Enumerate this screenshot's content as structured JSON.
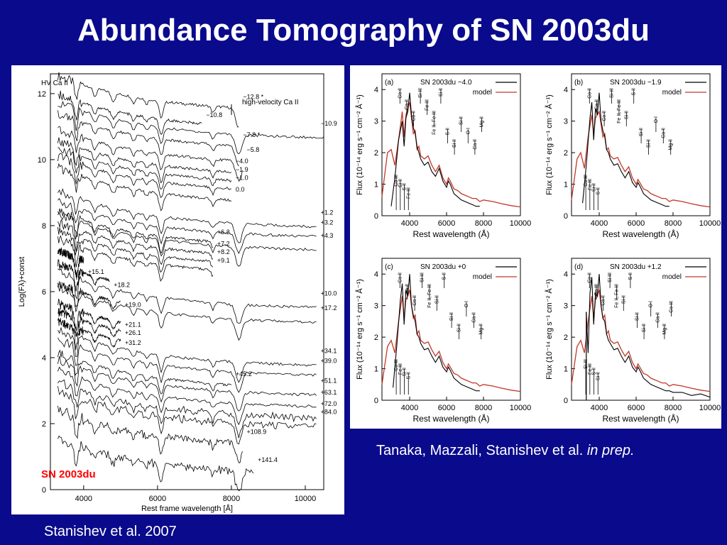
{
  "slide": {
    "title": "Abundance Tomography of SN 2003du",
    "caption_right_main": "Tanaka, Mazzali, Stanishev et al.",
    "caption_right_italic": "in prep.",
    "caption_left": "Stanishev et al. 2007"
  },
  "colors": {
    "background": "#0a0a8c",
    "model": "#c0392b",
    "observed": "#000000",
    "red_label": "#ff0000"
  },
  "chart_data": [
    {
      "type": "line",
      "title": "",
      "xlabel": "Rest frame wavelength [Å]",
      "ylabel": "Log(Fλ)+const",
      "xlim": [
        3100,
        10500
      ],
      "ylim": [
        0,
        12.6
      ],
      "xticks": [
        "4000",
        "6000",
        "8000",
        "10000"
      ],
      "yticks": [
        "0",
        "2",
        "4",
        "6",
        "8",
        "10",
        "12"
      ],
      "sn_label": "SN 2003du",
      "annotations": [
        "HV Ca II",
        "high-velocity Ca II"
      ],
      "series": [
        {
          "name": "−12.8 *",
          "offset": 11.9,
          "xmax": 8200
        },
        {
          "name": "−10.8",
          "offset": 11.35,
          "xmax": 7200
        },
        {
          "name": "−10.9",
          "offset": 11.1,
          "xmax": 10500
        },
        {
          "name": "−7.8 *",
          "offset": 10.75,
          "xmax": 8200
        },
        {
          "name": "−5.8",
          "offset": 10.3,
          "xmax": 8300
        },
        {
          "name": "−4.0",
          "offset": 9.95,
          "xmax": 8000
        },
        {
          "name": "−1.9",
          "offset": 9.7,
          "xmax": 8000
        },
        {
          "name": "−1.0",
          "offset": 9.45,
          "xmax": 8000
        },
        {
          "name": "0.0",
          "offset": 9.1,
          "xmax": 8000
        },
        {
          "name": "+1.2",
          "offset": 8.4,
          "xmax": 10300
        },
        {
          "name": "+3.2",
          "offset": 8.1,
          "xmax": 10300
        },
        {
          "name": "+6.2",
          "offset": 7.8,
          "xmax": 7500
        },
        {
          "name": "+4.3",
          "offset": 7.7,
          "xmax": 10300
        },
        {
          "name": "+7.2",
          "offset": 7.45,
          "xmax": 7500
        },
        {
          "name": "+8.2",
          "offset": 7.2,
          "xmax": 7500
        },
        {
          "name": "+9.1",
          "offset": 6.95,
          "xmax": 7500
        },
        {
          "name": "+15.1",
          "offset": 6.6,
          "xmax": 4000
        },
        {
          "name": "+18.2",
          "offset": 6.2,
          "xmax": 4700
        },
        {
          "name": "+10.0",
          "offset": 5.95,
          "xmax": 10300
        },
        {
          "name": "+19.0",
          "offset": 5.6,
          "xmax": 5000
        },
        {
          "name": "+17.2",
          "offset": 5.5,
          "xmax": 10300
        },
        {
          "name": "+21.1",
          "offset": 5.0,
          "xmax": 5000
        },
        {
          "name": "+26.1",
          "offset": 4.75,
          "xmax": 5000
        },
        {
          "name": "+31.2",
          "offset": 4.45,
          "xmax": 5000
        },
        {
          "name": "+34.1",
          "offset": 4.2,
          "xmax": 10300
        },
        {
          "name": "+39.0",
          "offset": 3.9,
          "xmax": 10300
        },
        {
          "name": "+45.2",
          "offset": 3.5,
          "xmax": 8000
        },
        {
          "name": "+51.1",
          "offset": 3.3,
          "xmax": 10300
        },
        {
          "name": "+63.1",
          "offset": 2.95,
          "xmax": 10300
        },
        {
          "name": "+72.0",
          "offset": 2.6,
          "xmax": 10300
        },
        {
          "name": "+84.0",
          "offset": 2.35,
          "xmax": 10300
        },
        {
          "name": "+108.9",
          "offset": 1.75,
          "xmax": 8300
        },
        {
          "name": "+141.4",
          "offset": 0.9,
          "xmax": 8600
        }
      ]
    },
    {
      "panel": "(a)",
      "type": "line",
      "legend_title": "SN 2003du −4.0",
      "legend_model": "model",
      "xlabel": "Rest wavelength (Å)",
      "ylabel": "Flux (10⁻¹⁴ erg s⁻¹ cm⁻² Å⁻¹)",
      "xlim": [
        2500,
        10000
      ],
      "ylim": [
        0,
        4.5
      ],
      "xticks": [
        "4000",
        "6000",
        "8000",
        "10000"
      ],
      "yticks": [
        "0",
        "1",
        "2",
        "3",
        "4"
      ],
      "series": [
        {
          "name": "SN 2003du",
          "x": [
            3000,
            3200,
            3400,
            3600,
            3700,
            3800,
            3900,
            4000,
            4100,
            4200,
            4300,
            4400,
            4500,
            4600,
            4800,
            5000,
            5200,
            5400,
            5600,
            5800,
            6000,
            6100,
            6200,
            6400,
            6600,
            6800,
            7000,
            7200,
            7400,
            7600,
            7800
          ],
          "y": [
            0.3,
            1.2,
            2.4,
            3.0,
            2.2,
            3.1,
            3.3,
            3.9,
            3.2,
            2.8,
            2.6,
            2.2,
            2.0,
            1.8,
            1.6,
            1.7,
            1.4,
            1.25,
            1.5,
            1.1,
            0.9,
            1.1,
            1.0,
            0.7,
            0.6,
            0.5,
            0.45,
            0.4,
            0.35,
            0.3,
            0.3
          ]
        },
        {
          "name": "model",
          "x": [
            2500,
            2800,
            3000,
            3200,
            3400,
            3600,
            3700,
            3800,
            3900,
            4000,
            4100,
            4200,
            4300,
            4400,
            4500,
            4600,
            4800,
            5000,
            5200,
            5400,
            5600,
            5800,
            6000,
            6100,
            6200,
            6400,
            6600,
            6800,
            7000,
            7200,
            7400,
            7600,
            7800,
            8000,
            8500,
            9000,
            9500,
            10000
          ],
          "y": [
            0.6,
            2.0,
            2.1,
            1.6,
            2.4,
            3.3,
            2.5,
            3.2,
            3.4,
            3.6,
            3.1,
            2.6,
            2.7,
            2.1,
            2.2,
            1.9,
            1.8,
            1.9,
            1.6,
            1.4,
            1.6,
            1.2,
            1.0,
            1.2,
            1.1,
            0.85,
            0.8,
            0.7,
            0.65,
            0.6,
            0.55,
            0.55,
            0.45,
            0.5,
            0.45,
            0.38,
            0.32,
            0.28
          ]
        }
      ],
      "line_labels": [
        "Co II",
        "Ca II",
        "Co II",
        "Si III",
        "Fe III",
        "Fe II, Fe III",
        "Si II",
        "S II",
        "Si II",
        "Si II",
        "O I",
        "Ca II",
        "Mg II",
        "Co III",
        "Si II",
        "S II",
        "Fe III"
      ]
    },
    {
      "panel": "(b)",
      "type": "line",
      "legend_title": "SN 2003du −1.9",
      "legend_model": "model",
      "xlabel": "Rest wavelength (Å)",
      "ylabel": "Flux (10⁻¹⁴ erg s⁻¹ cm⁻² Å⁻¹)",
      "xlim": [
        2500,
        10000
      ],
      "ylim": [
        0,
        4.5
      ],
      "xticks": [
        "4000",
        "6000",
        "8000",
        "10000"
      ],
      "yticks": [
        "0",
        "1",
        "2",
        "3",
        "4"
      ],
      "series": [
        {
          "name": "SN 2003du",
          "x": [
            3100,
            3300,
            3500,
            3600,
            3700,
            3800,
            3900,
            4000,
            4100,
            4200,
            4300,
            4400,
            4500,
            4600,
            4800,
            5000,
            5200,
            5400,
            5600,
            5800,
            6000,
            6100,
            6200,
            6400,
            6600,
            6800,
            7000,
            7200,
            7400,
            7600,
            7800
          ],
          "y": [
            0.4,
            1.6,
            3.1,
            3.6,
            2.4,
            3.4,
            3.2,
            3.9,
            3.0,
            2.7,
            2.5,
            2.1,
            2.0,
            1.8,
            1.6,
            1.65,
            1.4,
            1.2,
            1.4,
            1.05,
            0.9,
            1.05,
            0.95,
            0.7,
            0.6,
            0.5,
            0.45,
            0.4,
            0.35,
            0.3,
            0.3
          ]
        },
        {
          "name": "model",
          "x": [
            2500,
            2800,
            3000,
            3200,
            3400,
            3600,
            3700,
            3800,
            3900,
            4000,
            4100,
            4200,
            4300,
            4400,
            4500,
            4600,
            4800,
            5000,
            5200,
            5400,
            5600,
            5800,
            6000,
            6100,
            6200,
            6400,
            6600,
            6800,
            7000,
            7200,
            7400,
            7600,
            7800,
            8000,
            8500,
            9000,
            9500,
            10000
          ],
          "y": [
            0.5,
            1.8,
            2.0,
            1.5,
            2.5,
            3.2,
            2.6,
            3.1,
            3.2,
            3.3,
            2.9,
            2.5,
            2.6,
            2.1,
            2.15,
            1.9,
            1.8,
            1.85,
            1.6,
            1.4,
            1.55,
            1.2,
            1.0,
            1.15,
            1.05,
            0.85,
            0.8,
            0.7,
            0.65,
            0.6,
            0.55,
            0.55,
            0.45,
            0.5,
            0.45,
            0.38,
            0.32,
            0.28
          ]
        }
      ],
      "line_labels": [
        "Co II",
        "Ca II",
        "Co II",
        "Si III",
        "Fe II, Fe III",
        "Si II",
        "S II",
        "Si II",
        "Si II",
        "O I",
        "Ca II",
        "Mg II",
        "Co III",
        "Fe III",
        "Si II",
        "S II"
      ]
    },
    {
      "panel": "(c)",
      "type": "line",
      "legend_title": "SN 2003du +0",
      "legend_model": "model",
      "xlabel": "Rest wavelength (Å)",
      "ylabel": "Flux (10⁻¹⁴ erg s⁻¹ cm⁻² Å⁻¹)",
      "xlim": [
        2500,
        10000
      ],
      "ylim": [
        0,
        4.5
      ],
      "xticks": [
        "4000",
        "6000",
        "8000",
        "10000"
      ],
      "yticks": [
        "0",
        "1",
        "2",
        "3",
        "4"
      ],
      "series": [
        {
          "name": "SN 2003du",
          "x": [
            3100,
            3300,
            3500,
            3600,
            3700,
            3800,
            3900,
            4000,
            4100,
            4200,
            4300,
            4400,
            4500,
            4600,
            4800,
            5000,
            5200,
            5400,
            5600,
            5800,
            6000,
            6100,
            6200,
            6400,
            6600,
            6800,
            7000,
            7200,
            7400,
            7600,
            7800
          ],
          "y": [
            0.4,
            1.7,
            3.2,
            3.7,
            2.4,
            3.5,
            3.3,
            4.0,
            3.0,
            2.7,
            2.5,
            2.1,
            2.0,
            1.8,
            1.6,
            1.65,
            1.4,
            1.2,
            1.4,
            1.05,
            0.9,
            1.05,
            0.95,
            0.7,
            0.6,
            0.5,
            0.45,
            0.4,
            0.35,
            0.3,
            0.3
          ]
        },
        {
          "name": "model",
          "x": [
            2500,
            2800,
            3000,
            3200,
            3400,
            3600,
            3700,
            3800,
            3900,
            4000,
            4100,
            4200,
            4300,
            4400,
            4500,
            4600,
            4800,
            5000,
            5200,
            5400,
            5600,
            5800,
            6000,
            6100,
            6200,
            6400,
            6600,
            6800,
            7000,
            7200,
            7400,
            7600,
            7800,
            8000,
            8500,
            9000,
            9500,
            10000
          ],
          "y": [
            0.5,
            1.7,
            1.9,
            1.5,
            2.5,
            3.3,
            2.6,
            3.2,
            3.3,
            3.5,
            3.0,
            2.6,
            2.7,
            2.1,
            2.2,
            1.9,
            1.8,
            1.85,
            1.6,
            1.4,
            1.55,
            1.2,
            1.0,
            1.15,
            1.05,
            0.85,
            0.8,
            0.7,
            0.65,
            0.6,
            0.55,
            0.55,
            0.45,
            0.5,
            0.45,
            0.38,
            0.32,
            0.28
          ]
        }
      ],
      "line_labels": [
        "Co II",
        "Ca II",
        "Co II",
        "Si III",
        "Fe II, Fe III",
        "Si II",
        "S II",
        "Si II",
        "Si II",
        "O I",
        "Ca II",
        "Mg II",
        "Co III",
        "Fe III",
        "Si II",
        "S II"
      ]
    },
    {
      "panel": "(d)",
      "type": "line",
      "legend_title": "SN 2003du +1.2",
      "legend_model": "model",
      "xlabel": "Rest wavelength (Å)",
      "ylabel": "Flux (10⁻¹⁴ erg s⁻¹ cm⁻² Å⁻¹)",
      "xlim": [
        2500,
        10000
      ],
      "ylim": [
        0,
        4.5
      ],
      "xticks": [
        "4000",
        "6000",
        "8000",
        "10000"
      ],
      "yticks": [
        "0",
        "1",
        "2",
        "3",
        "4"
      ],
      "series": [
        {
          "name": "SN 2003du",
          "x": [
            3300,
            3400,
            3500,
            3600,
            3700,
            3800,
            3900,
            4000,
            4100,
            4200,
            4300,
            4400,
            4500,
            4600,
            4800,
            5000,
            5200,
            5400,
            5600,
            5800,
            6000,
            6100,
            6200,
            6400,
            6600,
            6800,
            7000,
            7200,
            7400,
            7600,
            7800,
            8000,
            8500,
            9000,
            9500,
            10000
          ],
          "y": [
            2.8,
            1.5,
            3.4,
            3.9,
            2.4,
            3.4,
            3.3,
            4.0,
            3.0,
            2.6,
            2.5,
            2.1,
            1.9,
            1.8,
            1.6,
            1.65,
            1.4,
            1.2,
            1.4,
            1.05,
            0.9,
            1.05,
            0.95,
            0.7,
            0.6,
            0.5,
            0.45,
            0.4,
            0.35,
            0.3,
            0.3,
            0.25,
            0.25,
            0.15,
            0.2,
            0.1
          ]
        },
        {
          "name": "model",
          "x": [
            2500,
            2800,
            3000,
            3200,
            3400,
            3600,
            3700,
            3800,
            3900,
            4000,
            4100,
            4200,
            4300,
            4400,
            4500,
            4600,
            4800,
            5000,
            5200,
            5400,
            5600,
            5800,
            6000,
            6100,
            6200,
            6400,
            6600,
            6800,
            7000,
            7200,
            7400,
            7600,
            7800,
            8000,
            8500,
            9000,
            9500,
            10000
          ],
          "y": [
            0.5,
            1.7,
            1.9,
            1.5,
            2.5,
            3.3,
            2.6,
            3.2,
            3.3,
            3.5,
            3.0,
            2.6,
            2.7,
            2.1,
            2.2,
            1.9,
            1.8,
            1.85,
            1.6,
            1.4,
            1.55,
            1.2,
            1.0,
            1.15,
            1.05,
            0.85,
            0.8,
            0.7,
            0.65,
            0.6,
            0.55,
            0.55,
            0.45,
            0.5,
            0.45,
            0.38,
            0.32,
            0.28
          ]
        }
      ],
      "line_labels": [
        "Co II",
        "Co III",
        "Ca II",
        "Si III",
        "Fe II, Fe III",
        "Si II",
        "S II",
        "Si II",
        "Si II",
        "O I",
        "Ca II",
        "Mg II",
        "Co III",
        "Si III",
        "Fe III",
        "S II",
        "Si II"
      ]
    }
  ]
}
